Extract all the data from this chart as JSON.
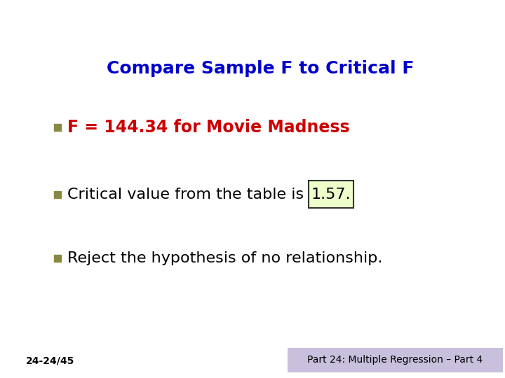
{
  "title": "Compare Sample F to Critical F",
  "title_color": "#0000CC",
  "title_fontsize": 18,
  "bullet_color": "#888844",
  "bullet_size": 7,
  "line1_text": "F = 144.34 for Movie Madness",
  "line1_color": "#CC0000",
  "line1_fontsize": 17,
  "line2_pre": "Critical value from the table is ",
  "line2_highlight": "1.57.",
  "line2_color": "#000000",
  "line2_fontsize": 16,
  "line3_text": "Reject the hypothesis of no relationship.",
  "line3_color": "#000000",
  "line3_fontsize": 16,
  "footer_left": "24-24/45",
  "footer_right": "Part 24: Multiple Regression – Part 4",
  "footer_fontsize": 10,
  "footer_left_color": "#000000",
  "footer_right_bg": "#C8C0DC",
  "footer_right_color": "#000000",
  "bg_color": "#FFFFFF",
  "left_bar_color": "#6060A0",
  "header_bg": "#D8D8D8",
  "box_highlight_bg": "#EEFFCC",
  "box_highlight_border": "#333333"
}
